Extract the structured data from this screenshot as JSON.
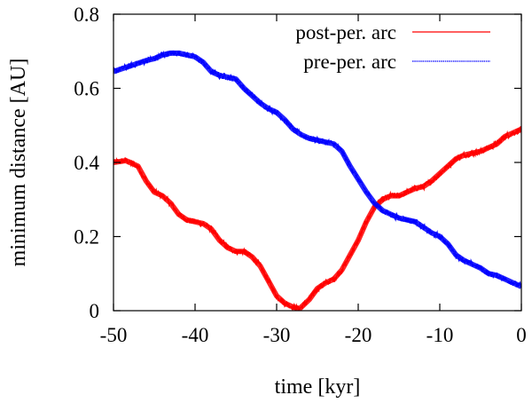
{
  "chart_data": {
    "type": "line",
    "title": "",
    "xlabel": "time [kyr]",
    "ylabel": "minimum distance [AU]",
    "xlim": [
      -50,
      0
    ],
    "ylim": [
      0,
      0.8
    ],
    "xticks": [
      -50,
      -40,
      -30,
      -20,
      -10,
      0
    ],
    "yticks": [
      0,
      0.2,
      0.4,
      0.6,
      0.8
    ],
    "xtick_labels": [
      "-50",
      "-40",
      "-30",
      "-20",
      "-10",
      "0"
    ],
    "ytick_labels": [
      "0",
      "0.2",
      "0.4",
      "0.6",
      "0.8"
    ],
    "grid": false,
    "legend_position": "top-right",
    "series": [
      {
        "name": "post-per. arc",
        "color": "#ff0000",
        "style": "solid",
        "x": [
          -50,
          -48.5,
          -47,
          -46,
          -45,
          -44,
          -43,
          -42,
          -41,
          -40,
          -39,
          -38,
          -37,
          -36,
          -35,
          -34,
          -33,
          -32,
          -31,
          -30,
          -29,
          -28,
          -27.2,
          -26,
          -25,
          -24,
          -23,
          -22,
          -21,
          -20,
          -19,
          -18,
          -17,
          -16,
          -15,
          -14,
          -13,
          -12,
          -11,
          -10,
          -9,
          -8,
          -7,
          -6,
          -5,
          -4,
          -3,
          -2,
          -1,
          0
        ],
        "values": [
          0.4,
          0.405,
          0.39,
          0.35,
          0.32,
          0.31,
          0.29,
          0.26,
          0.245,
          0.24,
          0.235,
          0.22,
          0.19,
          0.17,
          0.16,
          0.16,
          0.145,
          0.12,
          0.08,
          0.04,
          0.02,
          0.01,
          0.005,
          0.03,
          0.06,
          0.075,
          0.085,
          0.11,
          0.15,
          0.19,
          0.24,
          0.28,
          0.3,
          0.31,
          0.31,
          0.32,
          0.33,
          0.335,
          0.35,
          0.37,
          0.39,
          0.41,
          0.42,
          0.425,
          0.43,
          0.44,
          0.45,
          0.47,
          0.48,
          0.49
        ],
        "noise": 0.008
      },
      {
        "name": "pre-per. arc",
        "color": "#0000ff",
        "style": "dotted",
        "x": [
          -50,
          -48,
          -46,
          -45,
          -44,
          -43,
          -42,
          -41,
          -40,
          -39,
          -38,
          -37,
          -36,
          -35,
          -34,
          -33,
          -32,
          -31,
          -30,
          -29,
          -28,
          -27,
          -26,
          -25,
          -24,
          -23,
          -22,
          -21,
          -20,
          -19,
          -18,
          -17,
          -16,
          -15,
          -14,
          -13,
          -12,
          -11,
          -10,
          -9,
          -8,
          -7,
          -6,
          -5,
          -4,
          -3,
          -2,
          -1,
          0
        ],
        "values": [
          0.645,
          0.66,
          0.675,
          0.68,
          0.69,
          0.695,
          0.695,
          0.69,
          0.685,
          0.67,
          0.645,
          0.635,
          0.63,
          0.625,
          0.6,
          0.58,
          0.56,
          0.545,
          0.535,
          0.515,
          0.49,
          0.475,
          0.465,
          0.46,
          0.455,
          0.45,
          0.43,
          0.39,
          0.355,
          0.32,
          0.29,
          0.27,
          0.26,
          0.25,
          0.245,
          0.24,
          0.225,
          0.21,
          0.2,
          0.18,
          0.15,
          0.135,
          0.125,
          0.115,
          0.1,
          0.095,
          0.085,
          0.075,
          0.065
        ],
        "noise": 0.008
      }
    ]
  }
}
